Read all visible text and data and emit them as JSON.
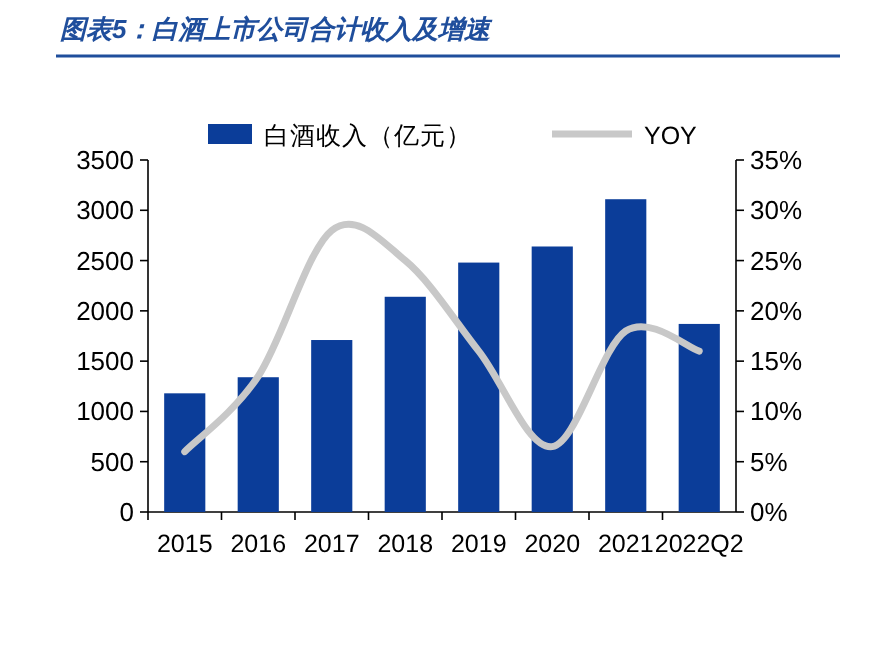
{
  "chart_data": {
    "type": "bar",
    "title": "图表5：白酒上市公司合计收入及增速",
    "categories": [
      "2015",
      "2016",
      "2017",
      "2018",
      "2019",
      "2020",
      "2021",
      "2022Q2"
    ],
    "series": [
      {
        "name": "白酒收入（亿元）",
        "color": "#0b3d99",
        "values": [
          1180,
          1340,
          1710,
          2140,
          2480,
          2640,
          3110,
          1870
        ]
      },
      {
        "name": "YOY",
        "type": "line",
        "axis": "y2",
        "color": "#c8c8c8",
        "values": [
          6,
          13.5,
          28,
          25,
          16,
          6.5,
          18,
          16
        ]
      }
    ],
    "ylim": [
      0,
      3500
    ],
    "yticks": [
      0,
      500,
      1000,
      1500,
      2000,
      2500,
      3000,
      3500
    ],
    "y2lim": [
      0,
      35
    ],
    "y2ticks": [
      {
        "value": 0,
        "label": "0%"
      },
      {
        "value": 5,
        "label": "5%"
      },
      {
        "value": 10,
        "label": "10%"
      },
      {
        "value": 15,
        "label": "15%"
      },
      {
        "value": 20,
        "label": "20%"
      },
      {
        "value": 25,
        "label": "25%"
      },
      {
        "value": 30,
        "label": "30%"
      },
      {
        "value": 35,
        "label": "35%"
      }
    ],
    "legend": "top",
    "grid": false
  }
}
